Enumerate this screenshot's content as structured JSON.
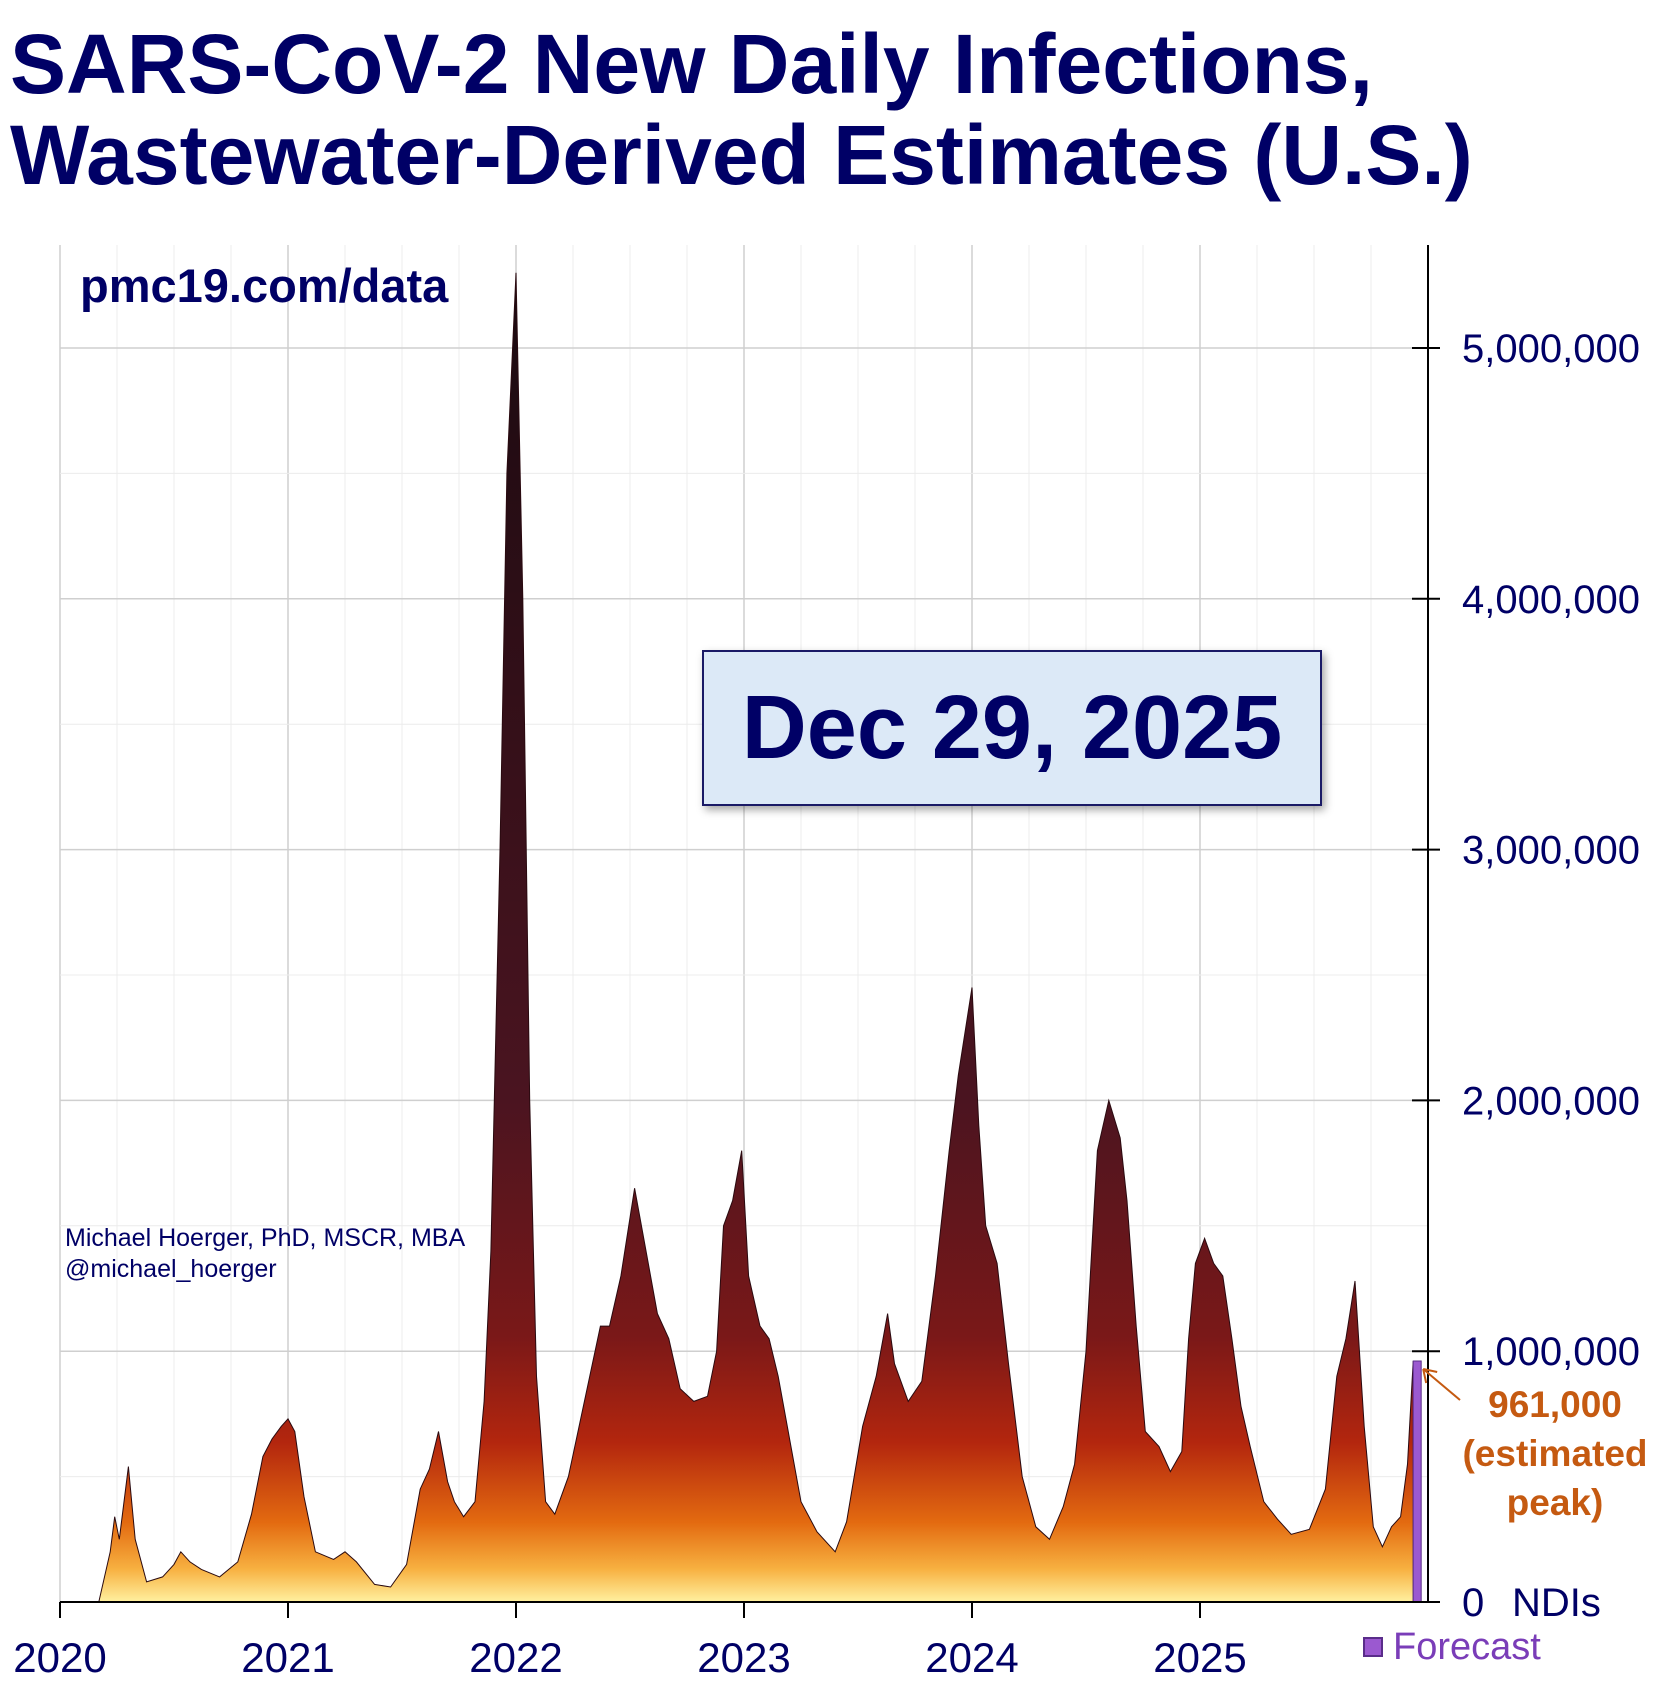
{
  "title_lines": [
    "SARS-CoV-2 New Daily Infections,",
    "Wastewater-Derived Estimates (U.S.)"
  ],
  "source_label": "pmc19.com/data",
  "author_lines": [
    "Michael Hoerger, PhD, MSCR, MBA",
    "@michael_hoerger"
  ],
  "date_label": "Dec 29, 2025",
  "annotation": {
    "value_label": "961,000",
    "note_lines": [
      "(estimated",
      "peak)"
    ],
    "color": "#c55a11"
  },
  "legend": {
    "forecast_label": "Forecast",
    "forecast_color": "#9b59d0"
  },
  "chart_data": {
    "type": "area",
    "x_unit": "year",
    "xlim": [
      2020,
      2026.0
    ],
    "ylim": [
      0,
      5400000
    ],
    "y_ticks": [
      0,
      1000000,
      2000000,
      3000000,
      4000000,
      5000000
    ],
    "y_tick_labels": [
      "0",
      "1,000,000",
      "2,000,000",
      "3,000,000",
      "4,000,000",
      "5,000,000"
    ],
    "y_unit_label": "NDIs",
    "x_ticks": [
      2020,
      2021,
      2022,
      2023,
      2024,
      2025
    ],
    "x_tick_labels": [
      "2020",
      "2021",
      "2022",
      "2023",
      "2024",
      "2025"
    ],
    "grid": true,
    "series": [
      {
        "values": [
          [
            2020.17,
            0
          ],
          [
            2020.22,
            200000
          ],
          [
            2020.24,
            340000
          ],
          [
            2020.26,
            250000
          ],
          [
            2020.3,
            540000
          ],
          [
            2020.33,
            250000
          ],
          [
            2020.38,
            80000
          ],
          [
            2020.45,
            100000
          ],
          [
            2020.5,
            150000
          ],
          [
            2020.53,
            200000
          ],
          [
            2020.57,
            160000
          ],
          [
            2020.62,
            130000
          ],
          [
            2020.7,
            100000
          ],
          [
            2020.78,
            160000
          ],
          [
            2020.84,
            350000
          ],
          [
            2020.89,
            580000
          ],
          [
            2020.93,
            650000
          ],
          [
            2020.97,
            700000
          ],
          [
            2021.0,
            730000
          ],
          [
            2021.03,
            680000
          ],
          [
            2021.07,
            420000
          ],
          [
            2021.12,
            200000
          ],
          [
            2021.2,
            170000
          ],
          [
            2021.25,
            200000
          ],
          [
            2021.3,
            160000
          ],
          [
            2021.38,
            70000
          ],
          [
            2021.45,
            60000
          ],
          [
            2021.52,
            150000
          ],
          [
            2021.58,
            450000
          ],
          [
            2021.62,
            530000
          ],
          [
            2021.66,
            680000
          ],
          [
            2021.7,
            480000
          ],
          [
            2021.73,
            400000
          ],
          [
            2021.77,
            340000
          ],
          [
            2021.82,
            400000
          ],
          [
            2021.86,
            800000
          ],
          [
            2021.89,
            1400000
          ],
          [
            2021.93,
            3000000
          ],
          [
            2021.96,
            4500000
          ],
          [
            2022.0,
            5300000
          ],
          [
            2022.03,
            4000000
          ],
          [
            2022.06,
            2000000
          ],
          [
            2022.09,
            900000
          ],
          [
            2022.13,
            400000
          ],
          [
            2022.17,
            350000
          ],
          [
            2022.23,
            500000
          ],
          [
            2022.3,
            800000
          ],
          [
            2022.37,
            1100000
          ],
          [
            2022.41,
            1100000
          ],
          [
            2022.46,
            1300000
          ],
          [
            2022.52,
            1650000
          ],
          [
            2022.57,
            1400000
          ],
          [
            2022.62,
            1150000
          ],
          [
            2022.67,
            1050000
          ],
          [
            2022.72,
            850000
          ],
          [
            2022.78,
            800000
          ],
          [
            2022.84,
            820000
          ],
          [
            2022.88,
            1000000
          ],
          [
            2022.91,
            1500000
          ],
          [
            2022.95,
            1600000
          ],
          [
            2022.99,
            1800000
          ],
          [
            2023.02,
            1300000
          ],
          [
            2023.07,
            1100000
          ],
          [
            2023.11,
            1050000
          ],
          [
            2023.15,
            900000
          ],
          [
            2023.19,
            700000
          ],
          [
            2023.25,
            400000
          ],
          [
            2023.32,
            280000
          ],
          [
            2023.4,
            200000
          ],
          [
            2023.45,
            320000
          ],
          [
            2023.52,
            700000
          ],
          [
            2023.58,
            900000
          ],
          [
            2023.63,
            1150000
          ],
          [
            2023.66,
            950000
          ],
          [
            2023.72,
            800000
          ],
          [
            2023.78,
            880000
          ],
          [
            2023.84,
            1300000
          ],
          [
            2023.9,
            1800000
          ],
          [
            2023.94,
            2100000
          ],
          [
            2024.0,
            2450000
          ],
          [
            2024.03,
            1900000
          ],
          [
            2024.06,
            1500000
          ],
          [
            2024.11,
            1350000
          ],
          [
            2024.16,
            950000
          ],
          [
            2024.22,
            500000
          ],
          [
            2024.28,
            300000
          ],
          [
            2024.34,
            250000
          ],
          [
            2024.4,
            380000
          ],
          [
            2024.45,
            550000
          ],
          [
            2024.5,
            1000000
          ],
          [
            2024.55,
            1800000
          ],
          [
            2024.6,
            2000000
          ],
          [
            2024.65,
            1850000
          ],
          [
            2024.68,
            1600000
          ],
          [
            2024.72,
            1100000
          ],
          [
            2024.76,
            680000
          ],
          [
            2024.82,
            620000
          ],
          [
            2024.87,
            520000
          ],
          [
            2024.92,
            600000
          ],
          [
            2024.95,
            1050000
          ],
          [
            2024.98,
            1350000
          ],
          [
            2025.02,
            1450000
          ],
          [
            2025.06,
            1350000
          ],
          [
            2025.1,
            1300000
          ],
          [
            2025.14,
            1050000
          ],
          [
            2025.18,
            780000
          ],
          [
            2025.22,
            620000
          ],
          [
            2025.28,
            400000
          ],
          [
            2025.34,
            330000
          ],
          [
            2025.4,
            270000
          ],
          [
            2025.48,
            290000
          ],
          [
            2025.55,
            450000
          ],
          [
            2025.6,
            900000
          ],
          [
            2025.64,
            1050000
          ],
          [
            2025.68,
            1280000
          ],
          [
            2025.72,
            700000
          ],
          [
            2025.76,
            300000
          ],
          [
            2025.8,
            220000
          ],
          [
            2025.84,
            300000
          ],
          [
            2025.88,
            340000
          ],
          [
            2025.91,
            550000
          ],
          [
            2025.935,
            961000
          ]
        ]
      },
      {
        "name": "Forecast",
        "values": [
          [
            2025.935,
            961000
          ],
          [
            2025.97,
            961000
          ]
        ]
      }
    ]
  }
}
